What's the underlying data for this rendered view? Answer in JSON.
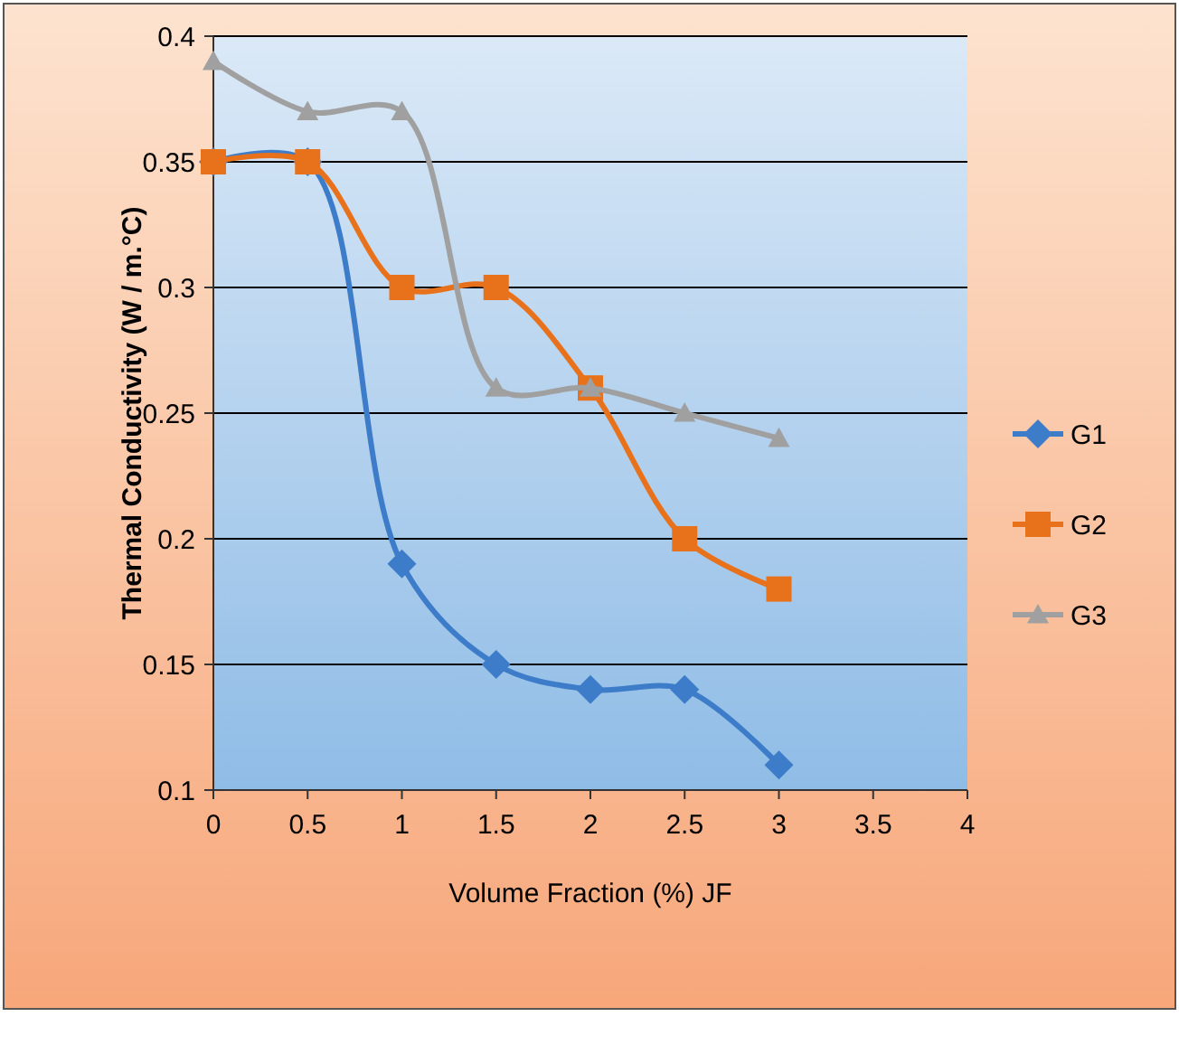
{
  "chart_data": {
    "type": "line",
    "xlabel": "Volume Fraction (%) JF",
    "ylabel": "Thermal Conductivity  (W / m.°C)",
    "x": [
      0,
      0.5,
      1,
      1.5,
      2,
      2.5,
      3
    ],
    "series": [
      {
        "name": "G1",
        "color": "#3d7cc9",
        "marker": "diamond",
        "values": [
          0.35,
          0.35,
          0.19,
          0.15,
          0.14,
          0.14,
          0.11
        ]
      },
      {
        "name": "G2",
        "color": "#e8711c",
        "marker": "square",
        "values": [
          0.35,
          0.35,
          0.3,
          0.3,
          0.26,
          0.2,
          0.18
        ]
      },
      {
        "name": "G3",
        "color": "#a0a0a0",
        "marker": "triangle",
        "values": [
          0.39,
          0.37,
          0.37,
          0.26,
          0.26,
          0.25,
          0.24
        ]
      }
    ],
    "xlim": [
      0,
      4
    ],
    "xticks": [
      0,
      0.5,
      1,
      1.5,
      2,
      2.5,
      3,
      3.5,
      4
    ],
    "ylim": [
      0.1,
      0.4
    ],
    "yticks": [
      0.1,
      0.15,
      0.2,
      0.25,
      0.3,
      0.35,
      0.4
    ],
    "grid": "y",
    "legend": "right"
  }
}
